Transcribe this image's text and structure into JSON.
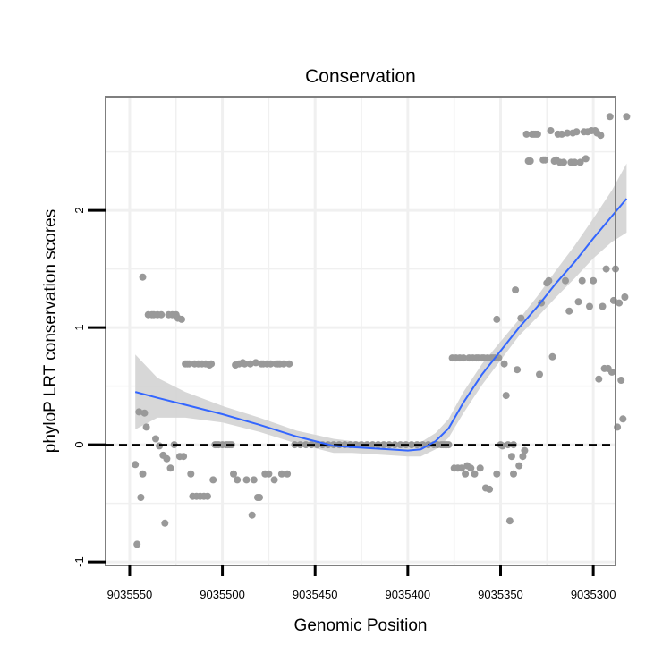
{
  "chart_data": {
    "type": "scatter",
    "title": "Conservation",
    "xlabel": "Genomic Position",
    "ylabel": "phyloP LRT conservation scores",
    "x_reversed": true,
    "xlim": [
      9035563,
      9035288
    ],
    "ylim": [
      -1.03,
      2.97
    ],
    "x_ticks": [
      9035550,
      9035500,
      9035450,
      9035400,
      9035350,
      9035300
    ],
    "x_tick_labels": [
      "9035550",
      "9035500",
      "9035450",
      "9035400",
      "9035350",
      "9035300"
    ],
    "y_ticks": [
      -1,
      0,
      1,
      2
    ],
    "y_tick_labels": [
      "-1",
      "0",
      "1",
      "2"
    ],
    "grid": true,
    "reference_line": {
      "y": 0,
      "style": "dashed"
    },
    "colors": {
      "points": "#999999",
      "smooth_line": "#3366ff",
      "ribbon": "#d3d3d3",
      "grid": "#f0f0f0",
      "border": "#7f7f7f"
    },
    "points": [
      [
        9035547,
        -0.17
      ],
      [
        9035546,
        -0.85
      ],
      [
        9035545,
        0.28
      ],
      [
        9035544,
        -0.45
      ],
      [
        9035543,
        -0.25
      ],
      [
        9035543,
        1.43
      ],
      [
        9035542,
        0.27
      ],
      [
        9035541,
        0.15
      ],
      [
        9035540,
        1.11
      ],
      [
        9035538,
        1.11
      ],
      [
        9035537,
        1.11
      ],
      [
        9035536,
        0.05
      ],
      [
        9035535,
        1.11
      ],
      [
        9035534,
        -0.01
      ],
      [
        9035533,
        1.11
      ],
      [
        9035532,
        -0.09
      ],
      [
        9035531,
        -0.67
      ],
      [
        9035530,
        -0.12
      ],
      [
        9035529,
        1.11
      ],
      [
        9035528,
        -0.2
      ],
      [
        9035527,
        1.11
      ],
      [
        9035526,
        0.0
      ],
      [
        9035525,
        1.11
      ],
      [
        9035524,
        1.08
      ],
      [
        9035523,
        -0.1
      ],
      [
        9035522,
        1.07
      ],
      [
        9035521,
        -0.1
      ],
      [
        9035520,
        0.69
      ],
      [
        9035519,
        0.69
      ],
      [
        9035518,
        0.69
      ],
      [
        9035517,
        -0.25
      ],
      [
        9035516,
        -0.44
      ],
      [
        9035515,
        0.69
      ],
      [
        9035514,
        -0.44
      ],
      [
        9035513,
        0.69
      ],
      [
        9035512,
        -0.44
      ],
      [
        9035511,
        0.69
      ],
      [
        9035510,
        -0.44
      ],
      [
        9035509,
        0.69
      ],
      [
        9035508,
        -0.44
      ],
      [
        9035507,
        0.68
      ],
      [
        9035506,
        0.69
      ],
      [
        9035505,
        -0.3
      ],
      [
        9035504,
        0.0
      ],
      [
        9035503,
        0.0
      ],
      [
        9035502,
        0.0
      ],
      [
        9035500,
        0.0
      ],
      [
        9035498,
        0.0
      ],
      [
        9035497,
        0.0
      ],
      [
        9035496,
        0.0
      ],
      [
        9035495,
        0.0
      ],
      [
        9035494,
        -0.25
      ],
      [
        9035493,
        0.68
      ],
      [
        9035492,
        -0.3
      ],
      [
        9035491,
        0.69
      ],
      [
        9035489,
        0.7
      ],
      [
        9035488,
        0.69
      ],
      [
        9035487,
        -0.3
      ],
      [
        9035485,
        0.69
      ],
      [
        9035484,
        -0.6
      ],
      [
        9035483,
        -0.3
      ],
      [
        9035482,
        0.7
      ],
      [
        9035481,
        -0.45
      ],
      [
        9035480,
        -0.45
      ],
      [
        9035479,
        0.69
      ],
      [
        9035478,
        0.69
      ],
      [
        9035477,
        -0.25
      ],
      [
        9035476,
        0.69
      ],
      [
        9035475,
        -0.25
      ],
      [
        9035474,
        0.69
      ],
      [
        9035472,
        -0.3
      ],
      [
        9035471,
        0.69
      ],
      [
        9035470,
        0.69
      ],
      [
        9035469,
        0.69
      ],
      [
        9035468,
        -0.25
      ],
      [
        9035467,
        0.69
      ],
      [
        9035465,
        -0.25
      ],
      [
        9035464,
        0.69
      ],
      [
        9035461,
        0.0
      ],
      [
        9035458,
        0.0
      ],
      [
        9035455,
        0.0
      ],
      [
        9035452,
        0.0
      ],
      [
        9035449,
        0.0
      ],
      [
        9035446,
        0.0
      ],
      [
        9035443,
        0.0
      ],
      [
        9035440,
        0.0
      ],
      [
        9035437,
        0.0
      ],
      [
        9035434,
        0.0
      ],
      [
        9035431,
        0.0
      ],
      [
        9035428,
        0.0
      ],
      [
        9035425,
        0.0
      ],
      [
        9035422,
        0.0
      ],
      [
        9035419,
        0.0
      ],
      [
        9035416,
        0.0
      ],
      [
        9035413,
        0.0
      ],
      [
        9035410,
        0.0
      ],
      [
        9035407,
        0.0
      ],
      [
        9035404,
        0.0
      ],
      [
        9035401,
        0.0
      ],
      [
        9035398,
        0.0
      ],
      [
        9035395,
        0.0
      ],
      [
        9035392,
        0.0
      ],
      [
        9035389,
        0.0
      ],
      [
        9035386,
        0.0
      ],
      [
        9035384,
        0.0
      ],
      [
        9035382,
        0.0
      ],
      [
        9035381,
        0.0
      ],
      [
        9035380,
        0.0
      ],
      [
        9035379,
        0.0
      ],
      [
        9035378,
        0.0
      ],
      [
        9035376,
        0.74
      ],
      [
        9035375,
        -0.2
      ],
      [
        9035374,
        0.74
      ],
      [
        9035373,
        -0.2
      ],
      [
        9035372,
        0.74
      ],
      [
        9035371,
        -0.2
      ],
      [
        9035370,
        0.74
      ],
      [
        9035369,
        -0.25
      ],
      [
        9035368,
        -0.18
      ],
      [
        9035367,
        0.74
      ],
      [
        9035366,
        -0.2
      ],
      [
        9035365,
        0.74
      ],
      [
        9035364,
        -0.25
      ],
      [
        9035363,
        0.74
      ],
      [
        9035362,
        0.74
      ],
      [
        9035361,
        -0.2
      ],
      [
        9035360,
        0.74
      ],
      [
        9035359,
        0.74
      ],
      [
        9035358,
        -0.37
      ],
      [
        9035357,
        0.74
      ],
      [
        9035356,
        -0.38
      ],
      [
        9035355,
        0.74
      ],
      [
        9035354,
        0.74
      ],
      [
        9035353,
        0.74
      ],
      [
        9035352,
        -0.25
      ],
      [
        9035352,
        1.07
      ],
      [
        9035351,
        0.74
      ],
      [
        9035350,
        0.0
      ],
      [
        9035349,
        -0.01
      ],
      [
        9035348,
        0.69
      ],
      [
        9035347,
        0.42
      ],
      [
        9035346,
        0.0
      ],
      [
        9035345,
        -0.65
      ],
      [
        9035344,
        -0.1
      ],
      [
        9035343,
        0.0
      ],
      [
        9035343,
        -0.25
      ],
      [
        9035342,
        1.32
      ],
      [
        9035341,
        0.64
      ],
      [
        9035340,
        -0.18
      ],
      [
        9035339,
        1.08
      ],
      [
        9035338,
        -0.1
      ],
      [
        9035337,
        -0.05
      ],
      [
        9035336,
        2.65
      ],
      [
        9035335,
        2.42
      ],
      [
        9035334,
        2.42
      ],
      [
        9035333,
        2.65
      ],
      [
        9035332,
        2.65
      ],
      [
        9035331,
        2.65
      ],
      [
        9035330,
        2.65
      ],
      [
        9035329,
        0.6
      ],
      [
        9035328,
        1.21
      ],
      [
        9035327,
        2.43
      ],
      [
        9035326,
        2.43
      ],
      [
        9035325,
        1.38
      ],
      [
        9035324,
        1.4
      ],
      [
        9035323,
        2.68
      ],
      [
        9035322,
        0.75
      ],
      [
        9035321,
        2.42
      ],
      [
        9035320,
        2.43
      ],
      [
        9035319,
        2.65
      ],
      [
        9035318,
        2.41
      ],
      [
        9035317,
        2.65
      ],
      [
        9035316,
        2.41
      ],
      [
        9035315,
        1.4
      ],
      [
        9035314,
        2.66
      ],
      [
        9035313,
        1.14
      ],
      [
        9035312,
        2.41
      ],
      [
        9035311,
        2.66
      ],
      [
        9035310,
        2.41
      ],
      [
        9035309,
        2.67
      ],
      [
        9035308,
        1.22
      ],
      [
        9035307,
        2.41
      ],
      [
        9035306,
        1.4
      ],
      [
        9035305,
        2.67
      ],
      [
        9035304,
        2.44
      ],
      [
        9035303,
        2.67
      ],
      [
        9035302,
        1.18
      ],
      [
        9035301,
        2.68
      ],
      [
        9035300,
        1.4
      ],
      [
        9035299,
        2.68
      ],
      [
        9035298,
        2.66
      ],
      [
        9035297,
        0.56
      ],
      [
        9035296,
        2.64
      ],
      [
        9035295,
        1.18
      ],
      [
        9035294,
        0.65
      ],
      [
        9035293,
        1.5
      ],
      [
        9035292,
        0.65
      ],
      [
        9035291,
        2.8
      ],
      [
        9035290,
        0.62
      ],
      [
        9035289,
        1.23
      ],
      [
        9035288,
        1.5
      ],
      [
        9035287,
        0.15
      ],
      [
        9035286,
        1.21
      ],
      [
        9035285,
        0.55
      ],
      [
        9035284,
        0.22
      ],
      [
        9035283,
        1.26
      ],
      [
        9035282,
        2.8
      ]
    ],
    "smooth_line": [
      [
        9035547,
        0.45
      ],
      [
        9035535,
        0.4
      ],
      [
        9035520,
        0.34
      ],
      [
        9035500,
        0.26
      ],
      [
        9035480,
        0.17
      ],
      [
        9035460,
        0.07
      ],
      [
        9035440,
        -0.01
      ],
      [
        9035430,
        -0.02
      ],
      [
        9035410,
        -0.04
      ],
      [
        9035400,
        -0.05
      ],
      [
        9035393,
        -0.04
      ],
      [
        9035385,
        0.03
      ],
      [
        9035378,
        0.14
      ],
      [
        9035370,
        0.36
      ],
      [
        9035360,
        0.6
      ],
      [
        9035350,
        0.8
      ],
      [
        9035340,
        1.0
      ],
      [
        9035330,
        1.18
      ],
      [
        9035320,
        1.38
      ],
      [
        9035310,
        1.56
      ],
      [
        9035300,
        1.76
      ],
      [
        9035290,
        1.95
      ],
      [
        9035282,
        2.1
      ]
    ],
    "ribbon_upper": [
      [
        9035547,
        0.77
      ],
      [
        9035535,
        0.57
      ],
      [
        9035520,
        0.45
      ],
      [
        9035500,
        0.33
      ],
      [
        9035480,
        0.23
      ],
      [
        9035460,
        0.12
      ],
      [
        9035440,
        0.05
      ],
      [
        9035430,
        0.03
      ],
      [
        9035410,
        0.01
      ],
      [
        9035400,
        0.0
      ],
      [
        9035393,
        0.02
      ],
      [
        9035385,
        0.1
      ],
      [
        9035378,
        0.22
      ],
      [
        9035370,
        0.45
      ],
      [
        9035360,
        0.69
      ],
      [
        9035350,
        0.88
      ],
      [
        9035340,
        1.07
      ],
      [
        9035330,
        1.27
      ],
      [
        9035320,
        1.49
      ],
      [
        9035310,
        1.7
      ],
      [
        9035300,
        1.93
      ],
      [
        9035290,
        2.17
      ],
      [
        9035282,
        2.4
      ]
    ],
    "ribbon_lower": [
      [
        9035547,
        0.13
      ],
      [
        9035535,
        0.23
      ],
      [
        9035520,
        0.23
      ],
      [
        9035500,
        0.19
      ],
      [
        9035480,
        0.11
      ],
      [
        9035460,
        0.01
      ],
      [
        9035440,
        -0.07
      ],
      [
        9035430,
        -0.07
      ],
      [
        9035410,
        -0.09
      ],
      [
        9035400,
        -0.1
      ],
      [
        9035393,
        -0.1
      ],
      [
        9035385,
        -0.04
      ],
      [
        9035378,
        0.06
      ],
      [
        9035370,
        0.27
      ],
      [
        9035360,
        0.51
      ],
      [
        9035350,
        0.72
      ],
      [
        9035340,
        0.93
      ],
      [
        9035330,
        1.09
      ],
      [
        9035320,
        1.26
      ],
      [
        9035310,
        1.42
      ],
      [
        9035300,
        1.59
      ],
      [
        9035290,
        1.73
      ],
      [
        9035282,
        1.81
      ]
    ]
  }
}
